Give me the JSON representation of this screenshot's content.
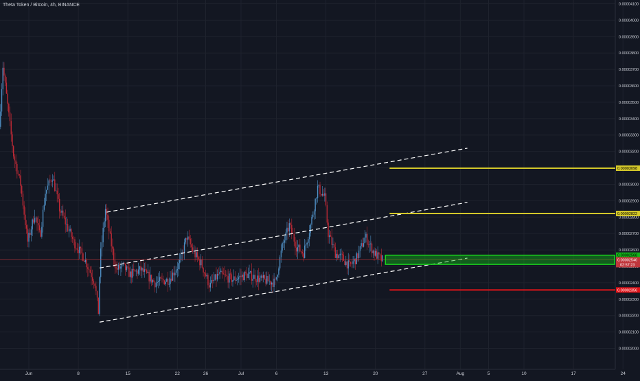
{
  "header": {
    "title": "Theta Token / Bitcoin, 4h, BINANCE"
  },
  "colors": {
    "background": "#131722",
    "grid": "#1e222d",
    "candle_up": "#4f8fc4",
    "candle_down": "#c02a36",
    "channel": "#ffffff",
    "resistance": "#d4c82a",
    "support_zone": "#12b418",
    "stop": "#e0141a",
    "current_price": "#c0363c",
    "axis_text": "#d1d4dc"
  },
  "chart_data": {
    "type": "candlestick",
    "title": "Theta Token / Bitcoin, 4h, BINANCE",
    "ylim": [
      2e-05,
      4.1e-05
    ],
    "y_ticks": [
      "0.00004100",
      "0.00004000",
      "0.00003900",
      "0.00003800",
      "0.00003700",
      "0.00003600",
      "0.00003500",
      "0.00003400",
      "0.00003300",
      "0.00003200",
      "0.00003100",
      "0.00003000",
      "0.00002900",
      "0.00002800",
      "0.00002700",
      "0.00002600",
      "0.00002500",
      "0.00002400",
      "0.00002300",
      "0.00002200",
      "0.00002100",
      "0.00002000"
    ],
    "x_ticks": [
      "Jun",
      "8",
      "15",
      "22",
      "26",
      "Jul",
      "6",
      "13",
      "20",
      "27",
      "Aug",
      "5",
      "10",
      "17",
      "24"
    ],
    "x_tick_dates": [
      "2020-06-01",
      "2020-06-08",
      "2020-06-15",
      "2020-06-22",
      "2020-06-26",
      "2020-07-01",
      "2020-07-06",
      "2020-07-13",
      "2020-07-20",
      "2020-07-27",
      "2020-08-01",
      "2020-08-05",
      "2020-08-10",
      "2020-08-17",
      "2020-08-24"
    ],
    "price_path": [
      [
        "2020-05-28T00:00",
        3.35e-05
      ],
      [
        "2020-05-28T12:00",
        3.72e-05
      ],
      [
        "2020-05-29T06:00",
        3.45e-05
      ],
      [
        "2020-05-30T00:00",
        3.18e-05
      ],
      [
        "2020-05-31T00:00",
        3e-05
      ],
      [
        "2020-06-01T00:00",
        2.65e-05
      ],
      [
        "2020-06-02T00:00",
        2.82e-05
      ],
      [
        "2020-06-02T18:00",
        2.68e-05
      ],
      [
        "2020-06-03T12:00",
        2.95e-05
      ],
      [
        "2020-06-04T12:00",
        3.05e-05
      ],
      [
        "2020-06-05T12:00",
        2.85e-05
      ],
      [
        "2020-06-06T12:00",
        2.75e-05
      ],
      [
        "2020-06-07T12:00",
        2.65e-05
      ],
      [
        "2020-06-09T00:00",
        2.55e-05
      ],
      [
        "2020-06-10T12:00",
        2.4e-05
      ],
      [
        "2020-06-11T00:00",
        2.22e-05
      ],
      [
        "2020-06-11T06:00",
        2.55e-05
      ],
      [
        "2020-06-12T00:00",
        2.85e-05
      ],
      [
        "2020-06-12T18:00",
        2.65e-05
      ],
      [
        "2020-06-13T12:00",
        2.48e-05
      ],
      [
        "2020-06-14T12:00",
        2.5e-05
      ],
      [
        "2020-06-15T12:00",
        2.45e-05
      ],
      [
        "2020-06-17T00:00",
        2.48e-05
      ],
      [
        "2020-06-19T00:00",
        2.4e-05
      ],
      [
        "2020-06-21T00:00",
        2.42e-05
      ],
      [
        "2020-06-22T12:00",
        2.52e-05
      ],
      [
        "2020-06-23T12:00",
        2.68e-05
      ],
      [
        "2020-06-24T12:00",
        2.58e-05
      ],
      [
        "2020-06-25T12:00",
        2.52e-05
      ],
      [
        "2020-06-26T18:00",
        2.38e-05
      ],
      [
        "2020-06-28T00:00",
        2.45e-05
      ],
      [
        "2020-06-30T00:00",
        2.42e-05
      ],
      [
        "2020-07-02T00:00",
        2.45e-05
      ],
      [
        "2020-07-04T00:00",
        2.42e-05
      ],
      [
        "2020-07-06T00:00",
        2.4e-05
      ],
      [
        "2020-07-07T00:00",
        2.62e-05
      ],
      [
        "2020-07-08T00:00",
        2.75e-05
      ],
      [
        "2020-07-09T00:00",
        2.62e-05
      ],
      [
        "2020-07-10T00:00",
        2.58e-05
      ],
      [
        "2020-07-11T00:00",
        2.75e-05
      ],
      [
        "2020-07-12T00:00",
        2.98e-05
      ],
      [
        "2020-07-13T00:00",
        2.92e-05
      ],
      [
        "2020-07-13T12:00",
        2.7e-05
      ],
      [
        "2020-07-14T12:00",
        2.58e-05
      ],
      [
        "2020-07-15T12:00",
        2.55e-05
      ],
      [
        "2020-07-16T12:00",
        2.5e-05
      ],
      [
        "2020-07-17T12:00",
        2.55e-05
      ],
      [
        "2020-07-18T18:00",
        2.68e-05
      ],
      [
        "2020-07-20T00:00",
        2.58e-05
      ],
      [
        "2020-07-21T00:00",
        2.54e-05
      ]
    ],
    "channel_lines": [
      {
        "name": "upper",
        "from": [
          "2020-06-12T00:00",
          2.83e-05
        ],
        "to": [
          "2020-08-02T00:00",
          3.22e-05
        ]
      },
      {
        "name": "middle",
        "from": [
          "2020-06-11T00:00",
          2.49e-05
        ],
        "to": [
          "2020-08-02T00:00",
          2.89e-05
        ]
      },
      {
        "name": "lower",
        "from": [
          "2020-06-11T00:00",
          2.16e-05
        ],
        "to": [
          "2020-08-02T00:00",
          2.55e-05
        ]
      }
    ],
    "levels": [
      {
        "name": "resistance-2",
        "value": 3.098e-05,
        "label": "0.00003098"
      },
      {
        "name": "resistance-1",
        "value": 2.822e-05,
        "label": "0.00002822"
      },
      {
        "name": "stop-level",
        "value": 2.356e-05,
        "label": "0.00002356"
      }
    ],
    "zone": {
      "top": 2.568e-05,
      "bottom": 2.512e-05,
      "top_label": "0.00002568",
      "bottom_label": "0.00002512"
    },
    "current_price": {
      "value": 2.54e-05,
      "label": "0.00002540",
      "countdown": "02:57:23"
    }
  }
}
